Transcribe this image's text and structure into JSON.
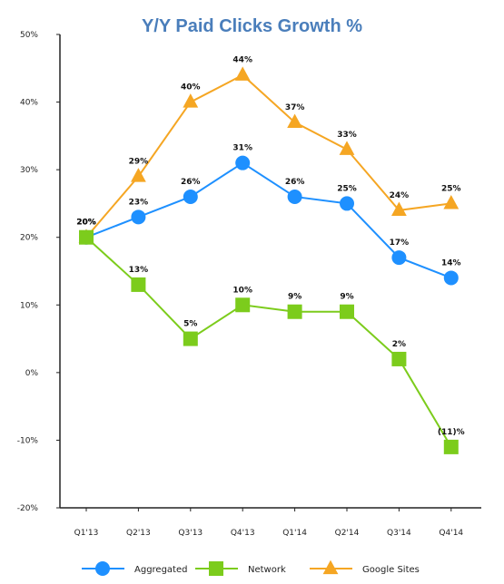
{
  "chart_data": {
    "type": "line",
    "title": "Y/Y Paid Clicks Growth %",
    "categories": [
      "Q1'13",
      "Q2'13",
      "Q3'13",
      "Q4'13",
      "Q1'14",
      "Q2'14",
      "Q3'14",
      "Q4'14"
    ],
    "ylim": [
      -20,
      50
    ],
    "yticks": [
      -20,
      -10,
      0,
      10,
      20,
      30,
      40,
      50
    ],
    "ytick_labels": [
      "-20%",
      "-10%",
      "0%",
      "10%",
      "20%",
      "30%",
      "40%",
      "50%"
    ],
    "grid": false,
    "legend_position": "bottom",
    "series": [
      {
        "name": "Aggregated",
        "marker": "circle",
        "color": "#1e90ff",
        "values": [
          20,
          23,
          26,
          31,
          26,
          25,
          17,
          14
        ],
        "labels": [
          "20%",
          "23%",
          "26%",
          "31%",
          "26%",
          "25%",
          "17%",
          "14%"
        ]
      },
      {
        "name": "Network",
        "marker": "square",
        "color": "#7ccc1c",
        "values": [
          20,
          13,
          5,
          10,
          9,
          9,
          2,
          -11
        ],
        "labels": [
          "20%",
          "13%",
          "5%",
          "10%",
          "9%",
          "9%",
          "2%",
          "(11)%"
        ]
      },
      {
        "name": "Google Sites",
        "marker": "triangle",
        "color": "#f5a623",
        "values": [
          20,
          29,
          40,
          44,
          37,
          33,
          24,
          25
        ],
        "labels": [
          "20%",
          "29%",
          "40%",
          "44%",
          "37%",
          "33%",
          "24%",
          "25%"
        ]
      }
    ]
  }
}
